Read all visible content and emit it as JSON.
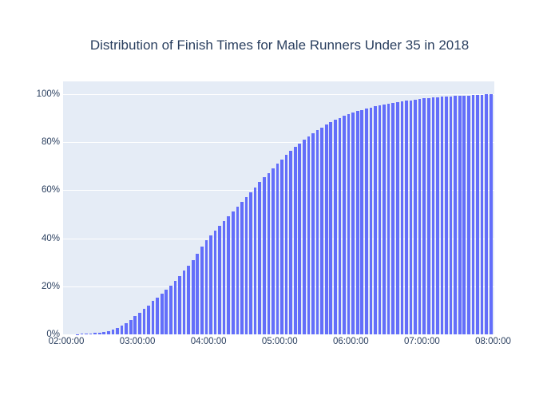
{
  "chart_data": {
    "type": "bar",
    "subtype": "cumulative-histogram",
    "title": "Distribution of Finish Times for Male Runners Under 35 in 2018",
    "xlabel": "",
    "ylabel": "",
    "x_ticks": [
      "02:00:00",
      "03:00:00",
      "04:00:00",
      "05:00:00",
      "06:00:00",
      "07:00:00",
      "08:00:00"
    ],
    "y_ticks": [
      "0%",
      "20%",
      "40%",
      "60%",
      "80%",
      "100%"
    ],
    "y_tick_values": [
      0,
      20,
      40,
      60,
      80,
      100
    ],
    "x_range": [
      "02:00:00",
      "08:00:00"
    ],
    "ylim_pct": [
      0,
      105.3
    ],
    "bin_minutes": 3.75,
    "grid": true,
    "legend": false,
    "values_pct": [
      0,
      0,
      0.1,
      0.2,
      0.3,
      0.4,
      0.6,
      0.8,
      1.1,
      1.5,
      2,
      2.6,
      3.5,
      4.6,
      5.9,
      7.5,
      9,
      10.5,
      12.1,
      13.8,
      15.4,
      17,
      18.7,
      20.4,
      22.4,
      24.4,
      26.5,
      28.6,
      31,
      33.6,
      36.4,
      39.3,
      41.3,
      43.3,
      45.3,
      47.3,
      49.3,
      51.3,
      53.3,
      55.3,
      57.3,
      59.3,
      61.3,
      63.3,
      65.3,
      67.2,
      69.1,
      71,
      72.8,
      74.6,
      76.3,
      78,
      79.5,
      81,
      82.4,
      83.7,
      85,
      86.2,
      87.3,
      88.3,
      89.3,
      90.2,
      91,
      91.8,
      92.4,
      93,
      93.5,
      94,
      94.5,
      94.9,
      95.3,
      95.7,
      96.1,
      96.4,
      96.7,
      97,
      97.3,
      97.5,
      97.7,
      97.9,
      98.2,
      98.4,
      98.6,
      98.8,
      98.9,
      99,
      99.1,
      99.2,
      99.3,
      99.4,
      99.5,
      99.6,
      99.7,
      99.8,
      99.9,
      100
    ],
    "colors": {
      "bar": "#636efa",
      "plot_background": "#e5ecf6",
      "gridline": "#ffffff",
      "text": "#2a3f5f",
      "page_background": "#ffffff"
    }
  }
}
